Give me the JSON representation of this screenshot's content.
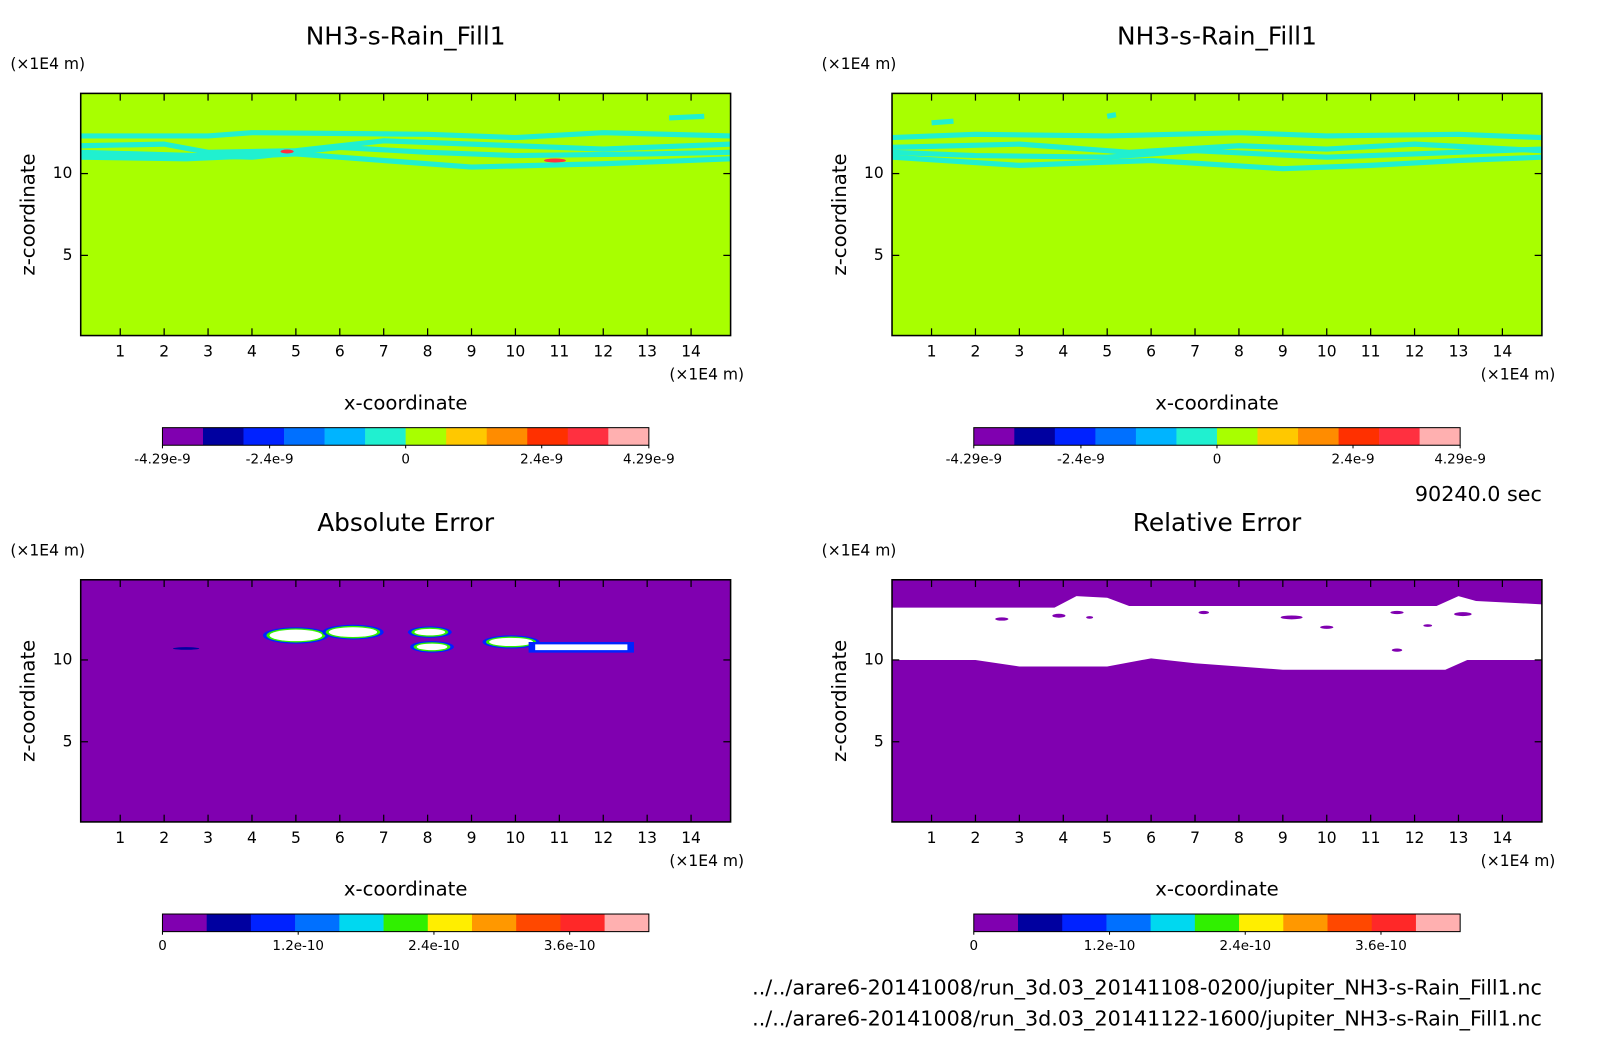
{
  "time": "90240.0 sec",
  "files": [
    "../../arare6-20141008/run_3d.03_20141108-0200/jupiter_NH3-s-Rain_Fill1.nc",
    "../../arare6-20141008/run_3d.03_20141122-1600/jupiter_NH3-s-Rain_Fill1.nc"
  ],
  "chart_data": [
    {
      "type": "contour",
      "title": "NH3-s-Rain_Fill1",
      "xlabel": "x-coordinate",
      "ylabel": "z-coordinate",
      "x_unit": "(×1E4 m)",
      "y_unit": "(×1E4 m)",
      "xlim": [
        0.1,
        14.9
      ],
      "ylim": [
        0.1,
        14.9
      ],
      "xticks": [
        1,
        2,
        3,
        4,
        5,
        6,
        7,
        8,
        9,
        10,
        11,
        12,
        13,
        14
      ],
      "yticks": [
        5,
        10
      ],
      "colorbar": {
        "lim": [
          -4.29e-09,
          4.29e-09
        ],
        "colors": [
          "#8000b0",
          "#0000a0",
          "#0022ff",
          "#0070ff",
          "#00b4ff",
          "#20f0d0",
          "#a8ff00",
          "#ffc800",
          "#ff8c00",
          "#ff3000",
          "#ff3040",
          "#ffb0b0"
        ],
        "ticks": [
          {
            "value": -4.29e-09,
            "label": "-4.29e-9"
          },
          {
            "value": -2.4e-09,
            "label": "-2.4e-9"
          },
          0,
          {
            "value": 2.4e-09,
            "label": "2.4e-9"
          },
          {
            "value": 4.29e-09,
            "label": "4.29e-9"
          }
        ]
      }
    },
    {
      "type": "contour",
      "title": "NH3-s-Rain_Fill1",
      "xlabel": "x-coordinate",
      "ylabel": "z-coordinate",
      "x_unit": "(×1E4 m)",
      "y_unit": "(×1E4 m)",
      "xlim": [
        0.1,
        14.9
      ],
      "ylim": [
        0.1,
        14.9
      ],
      "xticks": [
        1,
        2,
        3,
        4,
        5,
        6,
        7,
        8,
        9,
        10,
        11,
        12,
        13,
        14
      ],
      "yticks": [
        5,
        10
      ],
      "colorbar": {
        "lim": [
          -4.29e-09,
          4.29e-09
        ],
        "colors": [
          "#8000b0",
          "#0000a0",
          "#0022ff",
          "#0070ff",
          "#00b4ff",
          "#20f0d0",
          "#a8ff00",
          "#ffc800",
          "#ff8c00",
          "#ff3000",
          "#ff3040",
          "#ffb0b0"
        ],
        "ticks": [
          {
            "value": -4.29e-09,
            "label": "-4.29e-9"
          },
          {
            "value": -2.4e-09,
            "label": "-2.4e-9"
          },
          0,
          {
            "value": 2.4e-09,
            "label": "2.4e-9"
          },
          {
            "value": 4.29e-09,
            "label": "4.29e-9"
          }
        ]
      }
    },
    {
      "type": "contour",
      "title": "Absolute Error",
      "xlabel": "x-coordinate",
      "ylabel": "z-coordinate",
      "x_unit": "(×1E4 m)",
      "y_unit": "(×1E4 m)",
      "xlim": [
        0.1,
        14.9
      ],
      "ylim": [
        0.1,
        14.9
      ],
      "xticks": [
        1,
        2,
        3,
        4,
        5,
        6,
        7,
        8,
        9,
        10,
        11,
        12,
        13,
        14
      ],
      "yticks": [
        5,
        10
      ],
      "colorbar": {
        "lim": [
          0,
          4.3e-10
        ],
        "colors": [
          "#8000b0",
          "#0000a0",
          "#0022ff",
          "#0070ff",
          "#00d8f0",
          "#30f000",
          "#ffee00",
          "#ff9800",
          "#ff4800",
          "#ff2828",
          "#ffb0b0"
        ],
        "ticks": [
          0,
          {
            "value": 1.2e-10,
            "label": "1.2e-10"
          },
          {
            "value": 2.4e-10,
            "label": "2.4e-10"
          },
          {
            "value": 3.6e-10,
            "label": "3.6e-10"
          }
        ]
      }
    },
    {
      "type": "contour",
      "title": "Relative Error",
      "xlabel": "x-coordinate",
      "ylabel": "z-coordinate",
      "x_unit": "(×1E4 m)",
      "y_unit": "(×1E4 m)",
      "xlim": [
        0.1,
        14.9
      ],
      "ylim": [
        0.1,
        14.9
      ],
      "xticks": [
        1,
        2,
        3,
        4,
        5,
        6,
        7,
        8,
        9,
        10,
        11,
        12,
        13,
        14
      ],
      "yticks": [
        5,
        10
      ],
      "colorbar": {
        "lim": [
          0,
          4.3e-10
        ],
        "colors": [
          "#8000b0",
          "#0000a0",
          "#0022ff",
          "#0070ff",
          "#00d8f0",
          "#30f000",
          "#ffee00",
          "#ff9800",
          "#ff4800",
          "#ff2828",
          "#ffb0b0"
        ],
        "ticks": [
          0,
          {
            "value": 1.2e-10,
            "label": "1.2e-10"
          },
          {
            "value": 2.4e-10,
            "label": "2.4e-10"
          },
          {
            "value": 3.6e-10,
            "label": "3.6e-10"
          }
        ]
      }
    }
  ]
}
